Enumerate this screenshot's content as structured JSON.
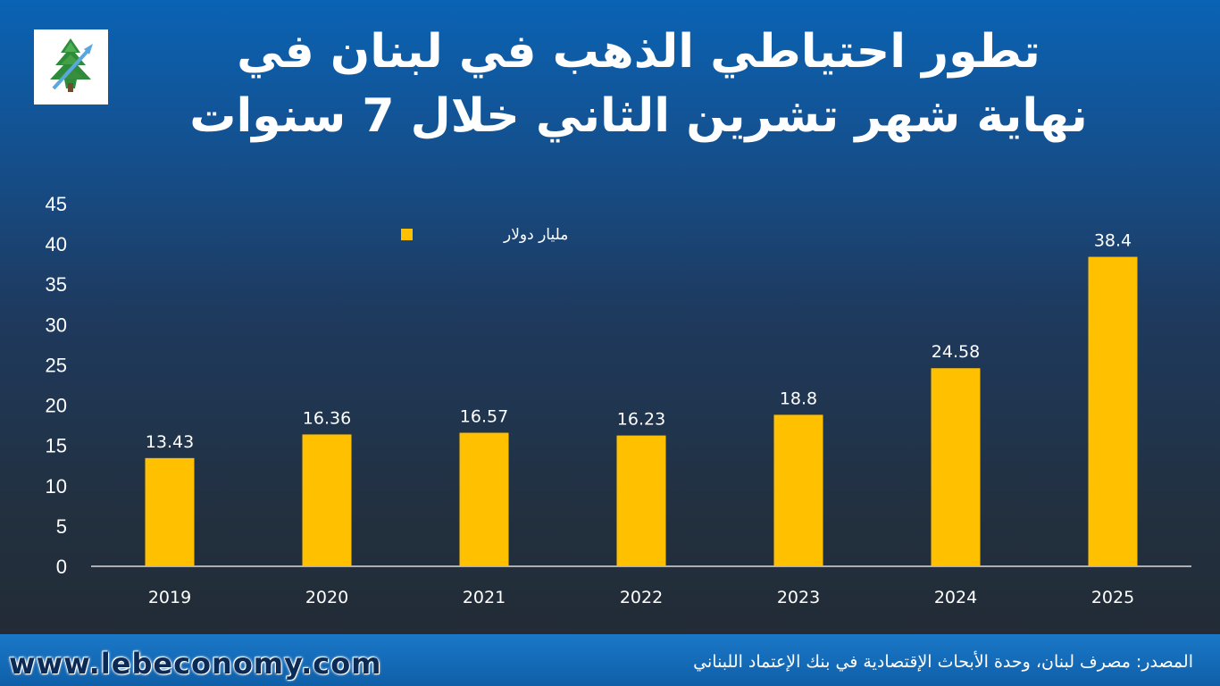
{
  "header": {
    "title_line1": "تطور احتياطي الذهب في لبنان في",
    "title_line2": "نهاية شهر تشرين الثاني خلال 7 سنوات"
  },
  "footer": {
    "website": "www.lebeconomy.com",
    "source": "المصدر: مصرف لبنان، وحدة الأبحاث الإقتصادية في بنك الإعتماد اللبناني"
  },
  "colors": {
    "bar": "#ffc000",
    "axis_text": "#ffffff",
    "baseline": "#d9d9d9"
  },
  "chart_data": {
    "type": "bar",
    "categories": [
      "2019",
      "2020",
      "2021",
      "2022",
      "2023",
      "2024",
      "2025"
    ],
    "series": [
      {
        "name": "مليار دولار",
        "values": [
          13.43,
          16.36,
          16.57,
          16.23,
          18.8,
          24.58,
          38.4
        ]
      }
    ],
    "data_labels": [
      "13.43",
      "16.36",
      "16.57",
      "16.23",
      "18.8",
      "24.58",
      "38.4"
    ],
    "yticks": [
      "0",
      "5",
      "10",
      "15",
      "20",
      "25",
      "30",
      "35",
      "40",
      "45"
    ],
    "ylim": [
      0,
      45
    ],
    "grid": false,
    "legend_position": "top-left"
  }
}
